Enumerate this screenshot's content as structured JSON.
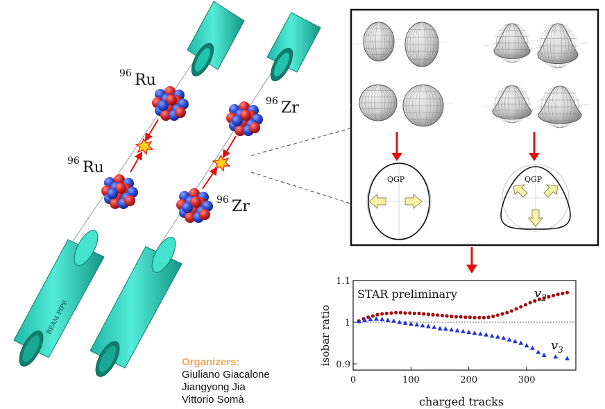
{
  "colors": {
    "pipe": "#33d9c1",
    "pipe_dark": "#1a9e8e",
    "proton": "#d62a2a",
    "neutron": "#2c4fd6",
    "arrow": "#e01010",
    "v2_series": "#a01010",
    "v3_series": "#1f2fe0",
    "organizer_title": "#f0a85a"
  },
  "labels": {
    "ru_top_mass": "96",
    "ru_top_sym": "Ru",
    "ru_bottom_mass": "96",
    "ru_bottom_sym": "Ru",
    "zr_top_mass": "96",
    "zr_top_sym": "Zr",
    "zr_bottom_mass": "96",
    "zr_bottom_sym": "Zr",
    "beam_pipe": "BEAM PIPE",
    "qgp_left": "QGP",
    "qgp_right": "QGP"
  },
  "organizers": {
    "title": "Organizers:",
    "names": [
      "Giuliano Giacalone",
      "Jiangyong Jia",
      "Vittorio Somà"
    ]
  },
  "chart_data": {
    "type": "scatter",
    "title": "STAR preliminary",
    "xlabel": "charged tracks",
    "ylabel": "isobar ratio",
    "xlim": [
      0,
      385
    ],
    "ylim": [
      0.885,
      1.1
    ],
    "xticks": [
      "0",
      "100",
      "200",
      "300"
    ],
    "yticks": [
      "0.9",
      "1",
      "1.1"
    ],
    "reference_line": 1.0,
    "series": [
      {
        "name": "v2",
        "marker": "circle",
        "x": [
          10,
          18,
          26,
          34,
          42,
          50,
          58,
          66,
          74,
          82,
          90,
          98,
          106,
          114,
          122,
          130,
          138,
          146,
          154,
          162,
          170,
          178,
          186,
          194,
          202,
          210,
          218,
          226,
          234,
          242,
          250,
          258,
          266,
          274,
          282,
          290,
          298,
          306,
          314,
          322,
          330,
          338,
          346,
          354,
          362,
          370
        ],
        "y": [
          1.003,
          1.008,
          1.012,
          1.015,
          1.018,
          1.02,
          1.021,
          1.022,
          1.023,
          1.023,
          1.022,
          1.022,
          1.021,
          1.021,
          1.02,
          1.019,
          1.018,
          1.017,
          1.016,
          1.015,
          1.014,
          1.013,
          1.013,
          1.012,
          1.012,
          1.011,
          1.011,
          1.011,
          1.012,
          1.014,
          1.017,
          1.02,
          1.023,
          1.027,
          1.032,
          1.037,
          1.042,
          1.047,
          1.051,
          1.055,
          1.058,
          1.061,
          1.064,
          1.067,
          1.069,
          1.071
        ]
      },
      {
        "name": "v3",
        "marker": "triangle",
        "x": [
          10,
          20,
          30,
          40,
          50,
          60,
          70,
          80,
          90,
          100,
          110,
          120,
          130,
          140,
          150,
          160,
          170,
          180,
          190,
          200,
          210,
          220,
          230,
          240,
          250,
          260,
          270,
          280,
          290,
          300,
          310,
          320,
          330,
          350,
          370
        ],
        "y": [
          1.002,
          1.005,
          1.007,
          1.008,
          1.007,
          1.005,
          1.003,
          1.0,
          0.998,
          0.996,
          0.994,
          0.992,
          0.99,
          0.988,
          0.985,
          0.984,
          0.982,
          0.98,
          0.978,
          0.976,
          0.974,
          0.972,
          0.97,
          0.967,
          0.965,
          0.962,
          0.958,
          0.954,
          0.95,
          0.944,
          0.938,
          0.928,
          0.921,
          0.917,
          0.913
        ]
      }
    ]
  }
}
